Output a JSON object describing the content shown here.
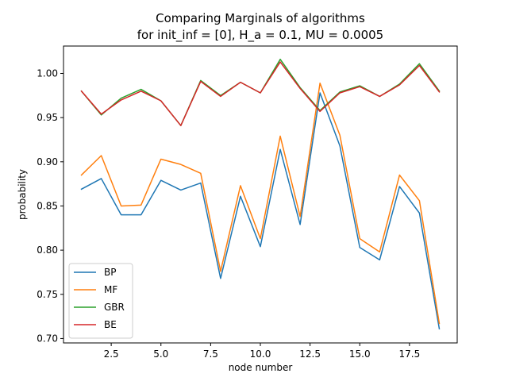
{
  "chart_data": {
    "type": "line",
    "title_line1": "Comparing Marginals of algorithms",
    "title_line2": "for init_inf = [0], H_a = 0.1, MU = 0.0005",
    "xlabel": "node number",
    "ylabel": "probability",
    "xlim": [
      0.1,
      19.9
    ],
    "ylim": [
      0.695,
      1.031
    ],
    "xticks": [
      2.5,
      5.0,
      7.5,
      10.0,
      12.5,
      15.0,
      17.5
    ],
    "xtick_labels": [
      "2.5",
      "5.0",
      "7.5",
      "10.0",
      "12.5",
      "15.0",
      "17.5"
    ],
    "yticks": [
      0.7,
      0.75,
      0.8,
      0.85,
      0.9,
      0.95,
      1.0
    ],
    "ytick_labels": [
      "0.70",
      "0.75",
      "0.80",
      "0.85",
      "0.90",
      "0.95",
      "1.00"
    ],
    "grid": false,
    "legend_position": "lower-left",
    "x": [
      1,
      2,
      3,
      4,
      5,
      6,
      7,
      8,
      9,
      10,
      11,
      12,
      13,
      14,
      15,
      16,
      17,
      18,
      19
    ],
    "series": [
      {
        "name": "BP",
        "color": "#1f77b4",
        "values": [
          0.869,
          0.881,
          0.84,
          0.84,
          0.879,
          0.868,
          0.876,
          0.768,
          0.861,
          0.804,
          0.914,
          0.829,
          0.978,
          0.918,
          0.803,
          0.789,
          0.872,
          0.842,
          0.711
        ]
      },
      {
        "name": "MF",
        "color": "#ff7f0e",
        "values": [
          0.885,
          0.907,
          0.85,
          0.851,
          0.903,
          0.897,
          0.887,
          0.776,
          0.873,
          0.813,
          0.929,
          0.838,
          0.989,
          0.93,
          0.813,
          0.798,
          0.885,
          0.856,
          0.717
        ]
      },
      {
        "name": "GBR",
        "color": "#2ca02c",
        "values": [
          0.98,
          0.953,
          0.972,
          0.982,
          0.969,
          0.941,
          0.992,
          0.975,
          0.99,
          0.978,
          1.016,
          0.984,
          0.958,
          0.979,
          0.986,
          0.974,
          0.988,
          1.011,
          0.98
        ]
      },
      {
        "name": "BE",
        "color": "#d62728",
        "values": [
          0.98,
          0.954,
          0.97,
          0.98,
          0.969,
          0.941,
          0.991,
          0.974,
          0.99,
          0.978,
          1.013,
          0.983,
          0.957,
          0.978,
          0.985,
          0.974,
          0.987,
          1.009,
          0.979
        ]
      }
    ]
  }
}
